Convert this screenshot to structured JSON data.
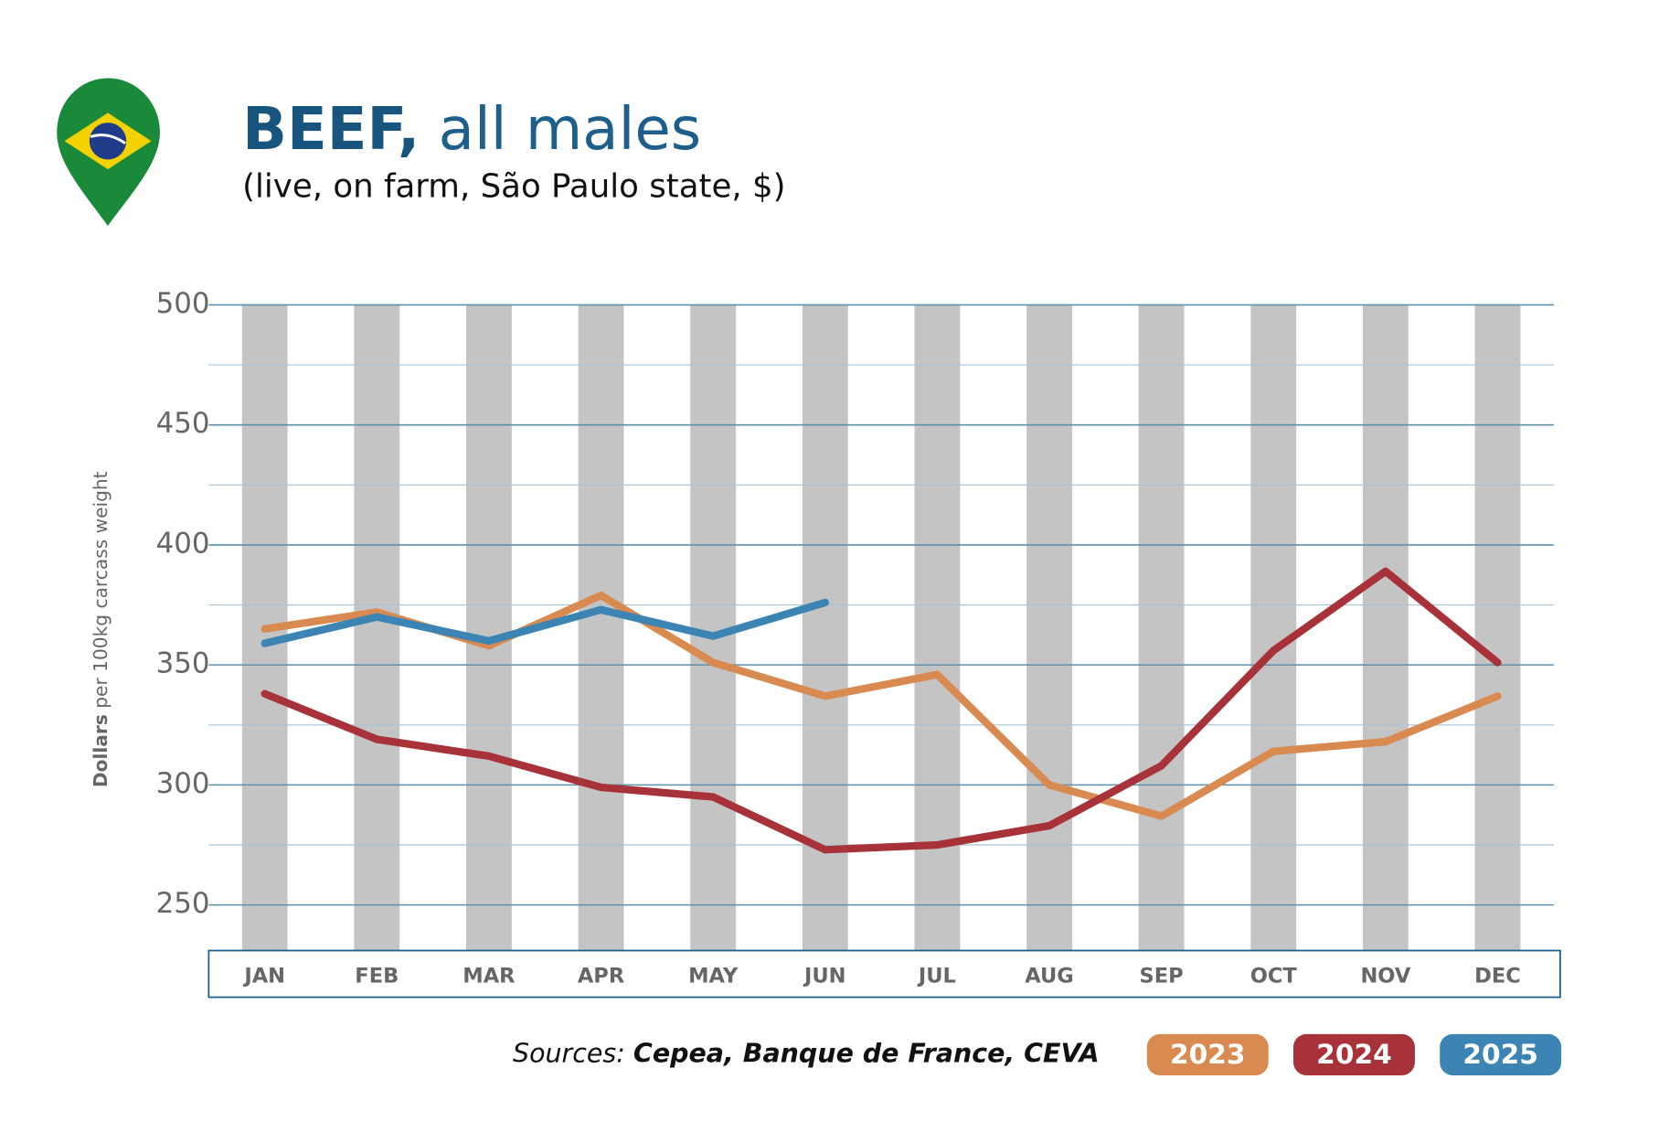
{
  "chart_data": {
    "type": "line",
    "title_emphasis": "BEEF,",
    "title": "all males",
    "subtitle": "(live, on farm, São Paulo state, $)",
    "y_label_emphasis": "Dollars",
    "y_label": "per 100kg carcass weight",
    "source_label": "Sources:",
    "source": "Cepea, Banque de France, CEVA",
    "categories": [
      "JAN",
      "FEB",
      "MAR",
      "APR",
      "MAY",
      "JUN",
      "JUL",
      "AUG",
      "SEP",
      "OCT",
      "NOV",
      "DEC"
    ],
    "series": [
      {
        "name": "2023",
        "color": "#d98a50",
        "values": [
          365,
          372,
          358,
          379,
          351,
          337,
          346,
          300,
          287,
          314,
          318,
          337
        ]
      },
      {
        "name": "2024",
        "color": "#a8323a",
        "values": [
          338,
          319,
          312,
          299,
          295,
          273,
          275,
          283,
          308,
          356,
          389,
          351
        ]
      },
      {
        "name": "2025",
        "color": "#3b84b4",
        "values": [
          359,
          370,
          360,
          373,
          362,
          376,
          null,
          null,
          null,
          null,
          null,
          null
        ]
      }
    ],
    "ylim": [
      231,
      500
    ],
    "yticks": [
      250,
      300,
      350,
      400,
      450,
      500
    ],
    "minor_yticks": [
      275,
      325,
      375,
      425,
      475
    ],
    "grid": true
  }
}
